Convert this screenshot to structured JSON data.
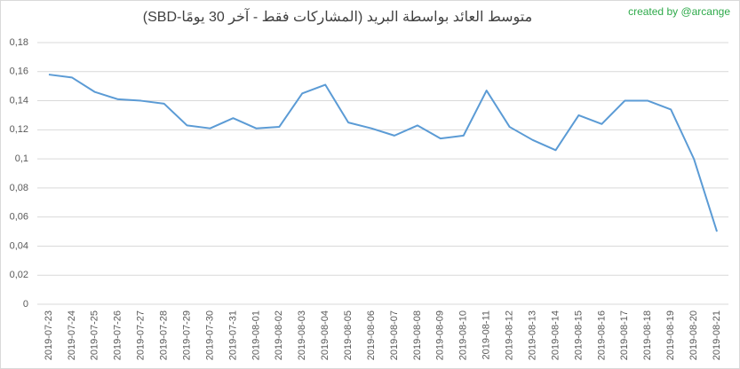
{
  "chart_data": {
    "type": "line",
    "title": "متوسط العائد بواسطة البريد (المشاركات فقط - آخر 30 يومًا-SBD)",
    "annotation": "created by @arcange",
    "categories": [
      "2019-07-23",
      "2019-07-24",
      "2019-07-25",
      "2019-07-26",
      "2019-07-27",
      "2019-07-28",
      "2019-07-29",
      "2019-07-30",
      "2019-07-31",
      "2019-08-01",
      "2019-08-02",
      "2019-08-03",
      "2019-08-04",
      "2019-08-05",
      "2019-08-06",
      "2019-08-07",
      "2019-08-08",
      "2019-08-09",
      "2019-08-10",
      "2019-08-11",
      "2019-08-12",
      "2019-08-13",
      "2019-08-14",
      "2019-08-15",
      "2019-08-16",
      "2019-08-17",
      "2019-08-18",
      "2019-08-19",
      "2019-08-20",
      "2019-08-21"
    ],
    "values": [
      0.158,
      0.156,
      0.146,
      0.141,
      0.14,
      0.138,
      0.123,
      0.121,
      0.128,
      0.121,
      0.122,
      0.145,
      0.151,
      0.125,
      0.121,
      0.116,
      0.123,
      0.114,
      0.116,
      0.147,
      0.122,
      0.113,
      0.106,
      0.13,
      0.124,
      0.14,
      0.14,
      0.134,
      0.1,
      0.05
    ],
    "color": "#5b9bd5",
    "ylim": [
      0,
      0.18
    ],
    "yticks": [
      0,
      {
        "value": 0.02,
        "label": "0,02"
      },
      {
        "value": 0.04,
        "label": "0,04"
      },
      {
        "value": 0.06,
        "label": "0,06"
      },
      {
        "value": 0.08,
        "label": "0,08"
      },
      {
        "value": 0.1,
        "label": "0,1"
      },
      {
        "value": 0.12,
        "label": "0,12"
      },
      {
        "value": 0.14,
        "label": "0,14"
      },
      {
        "value": 0.16,
        "label": "0,16"
      },
      {
        "value": 0.18,
        "label": "0,18"
      }
    ],
    "grid": true
  }
}
